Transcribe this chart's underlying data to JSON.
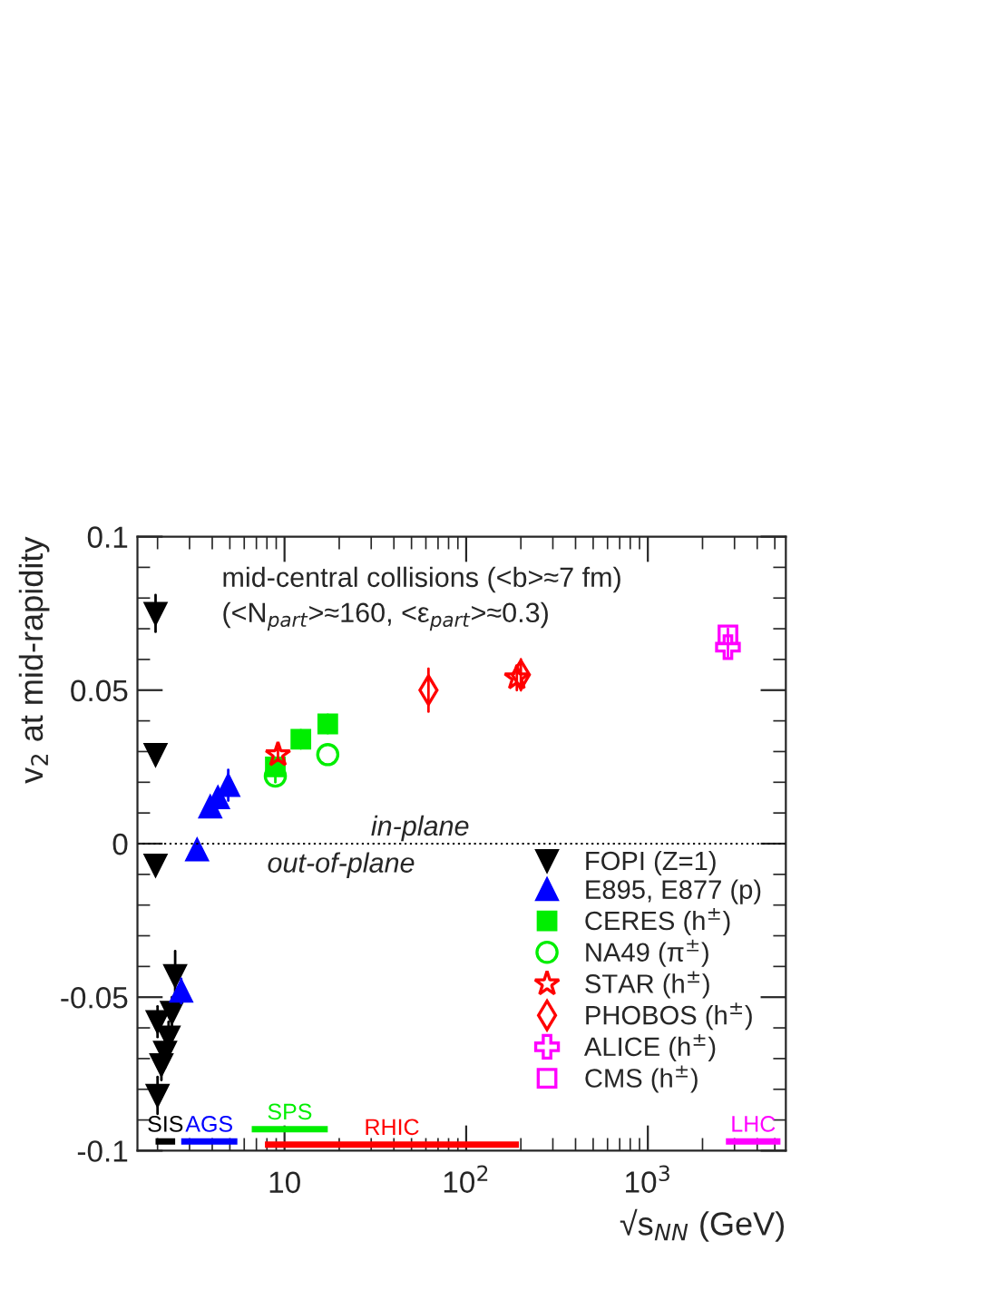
{
  "chart_data": {
    "type": "scatter",
    "xlabel": "√s$_{NN}$ (GeV)",
    "ylabel": "v$_{2}$ at mid-rapidity",
    "log": "x",
    "xlim": [
      1.55,
      5750
    ],
    "xticks": [
      {
        "value": 10,
        "label": "10"
      },
      {
        "value": 100,
        "label": "10$^{2}$"
      },
      {
        "value": 1000,
        "label": "10$^{3}$"
      }
    ],
    "ylim": [
      -0.1,
      0.1
    ],
    "yticks": [
      {
        "value": -0.1,
        "label": "-0.1"
      },
      {
        "value": -0.05,
        "label": "-0.05"
      },
      {
        "value": 0,
        "label": "0"
      },
      {
        "value": 0.05,
        "label": "0.05"
      },
      {
        "value": 0.1,
        "label": "0.1"
      }
    ],
    "legend": "bottom right",
    "grid": false,
    "series": [
      {
        "name": "FOPI (Z=1)",
        "color": "#000000",
        "marker": "triangle_down",
        "x": [
          1.95,
          1.95,
          1.95,
          2.0,
          2.0,
          2.1,
          2.2,
          2.3,
          2.4,
          2.5
        ],
        "values": [
          0.075,
          0.029,
          -0.007,
          -0.058,
          -0.082,
          -0.072,
          -0.068,
          -0.063,
          -0.055,
          -0.043
        ],
        "errors": [
          0.006,
          null,
          null,
          0.005,
          0.006,
          0.005,
          0.005,
          0.005,
          0.005,
          0.008
        ]
      },
      {
        "name": "E895, E877 (p)",
        "color": "#0000ff",
        "marker": "triangle",
        "x": [
          2.7,
          3.3,
          3.9,
          4.3,
          4.9
        ],
        "values": [
          -0.048,
          -0.002,
          0.012,
          0.015,
          0.019
        ],
        "errors": [
          0.004,
          null,
          0.003,
          0.003,
          0.005
        ]
      },
      {
        "name": "CERES (h$^{±}$)",
        "color": "#00ee00",
        "marker": "square",
        "x": [
          8.9,
          12.3,
          17.3
        ],
        "values": [
          0.025,
          0.034,
          0.039
        ],
        "errors": [
          0.003,
          0.003,
          0.003
        ]
      },
      {
        "name": "NA49 (π$^{±}$)",
        "color": "#00ee00",
        "marker": "circle_open",
        "x": [
          8.9,
          17.3
        ],
        "values": [
          0.022,
          0.029
        ],
        "errors": [
          0.002,
          null
        ]
      },
      {
        "name": "STAR (h$^{±}$)",
        "color": "#ff0000",
        "marker": "star_open",
        "x": [
          9.2,
          190
        ],
        "values": [
          0.029,
          0.054
        ],
        "errors": [
          0.002,
          0.004
        ]
      },
      {
        "name": "PHOBOS (h$^{±}$)",
        "color": "#ff0000",
        "marker": "diamond_open",
        "x": [
          62,
          200
        ],
        "values": [
          0.05,
          0.055
        ],
        "errors": [
          0.007,
          0.005
        ]
      },
      {
        "name": "ALICE (h$^{±}$)",
        "color": "#ff00ff",
        "marker": "cross_open",
        "x": [
          2760
        ],
        "values": [
          0.064
        ],
        "errors": [
          0.003
        ]
      },
      {
        "name": "CMS (h$^{±}$)",
        "color": "#ff00ff",
        "marker": "square_open",
        "x": [
          2760
        ],
        "values": [
          0.068
        ],
        "errors": [
          0.002
        ]
      },
      {
        "name": "SIS",
        "type": "line",
        "color": "#000000",
        "x": [
          1.95,
          2.5
        ],
        "values": [
          -0.097,
          -0.097
        ]
      },
      {
        "name": "AGS",
        "type": "line",
        "color": "#0000ff",
        "x": [
          2.7,
          5.5
        ],
        "values": [
          -0.097,
          -0.097
        ]
      },
      {
        "name": "SPS",
        "type": "line",
        "color": "#00ee00",
        "x": [
          6.6,
          17.3
        ],
        "values": [
          -0.093,
          -0.093
        ]
      },
      {
        "name": "RHIC",
        "type": "line",
        "color": "#ff0000",
        "x": [
          7.8,
          195
        ],
        "values": [
          -0.098,
          -0.098
        ]
      },
      {
        "name": "LHC",
        "type": "line",
        "color": "#ff00ff",
        "x": [
          2690,
          5370
        ],
        "values": [
          -0.097,
          -0.097
        ]
      }
    ],
    "ref_lines": [
      {
        "axis": "y",
        "value": 0,
        "label": null,
        "color": "#000000",
        "line_style": "dotted"
      }
    ],
    "annotations": [
      "mid-central collisions (<b>≈7 fm)",
      "(<N$_{part}$>≈160, <ε$_{part}$>≈0.3)",
      "in-plane",
      "out-of-plane"
    ]
  }
}
